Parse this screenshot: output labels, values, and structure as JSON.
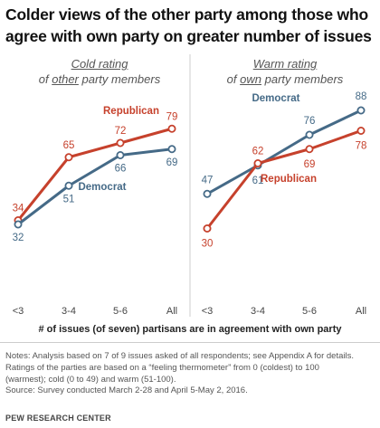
{
  "title": {
    "line1": "Colder views of the other party among those who",
    "line2": "agree with own party on greater number of issues"
  },
  "panels": [
    {
      "title_line1": "Cold rating",
      "title_line2_pre": "of ",
      "title_line2_u": "other",
      "title_line2_post": " party members"
    },
    {
      "title_line1": "Warm rating",
      "title_line2_pre": "of ",
      "title_line2_u": "own",
      "title_line2_post": " party members"
    }
  ],
  "x_axis_label": "# of issues (of seven) partisans are in agreement with own party",
  "notes": {
    "line1": "Notes: Analysis based on 7 of 9 issues asked of all respondents; see Appendix A for details.",
    "line2": "Ratings of the parties are based on a “feeling thermometer” from 0 (coldest) to 100",
    "line3": "(warmest); cold (0 to 49) and warm (51-100).",
    "line4": "Source: Survey conducted March 2-28 and April 5-May 2, 2016."
  },
  "source": "PEW RESEARCH CENTER",
  "colors": {
    "republican": "#c6412c",
    "democrat": "#456a87",
    "grid": "#cccccc"
  },
  "chart_data": [
    {
      "type": "line",
      "categories": [
        "<3",
        "3-4",
        "5-6",
        "All"
      ],
      "series": [
        {
          "name": "Republican",
          "values": [
            34,
            65,
            72,
            79
          ]
        },
        {
          "name": "Democrat",
          "values": [
            32,
            51,
            66,
            69
          ]
        }
      ]
    },
    {
      "type": "line",
      "categories": [
        "<3",
        "3-4",
        "5-6",
        "All"
      ],
      "series": [
        {
          "name": "Democrat",
          "values": [
            47,
            61,
            76,
            88
          ]
        },
        {
          "name": "Republican",
          "values": [
            30,
            62,
            69,
            78
          ]
        }
      ]
    }
  ]
}
